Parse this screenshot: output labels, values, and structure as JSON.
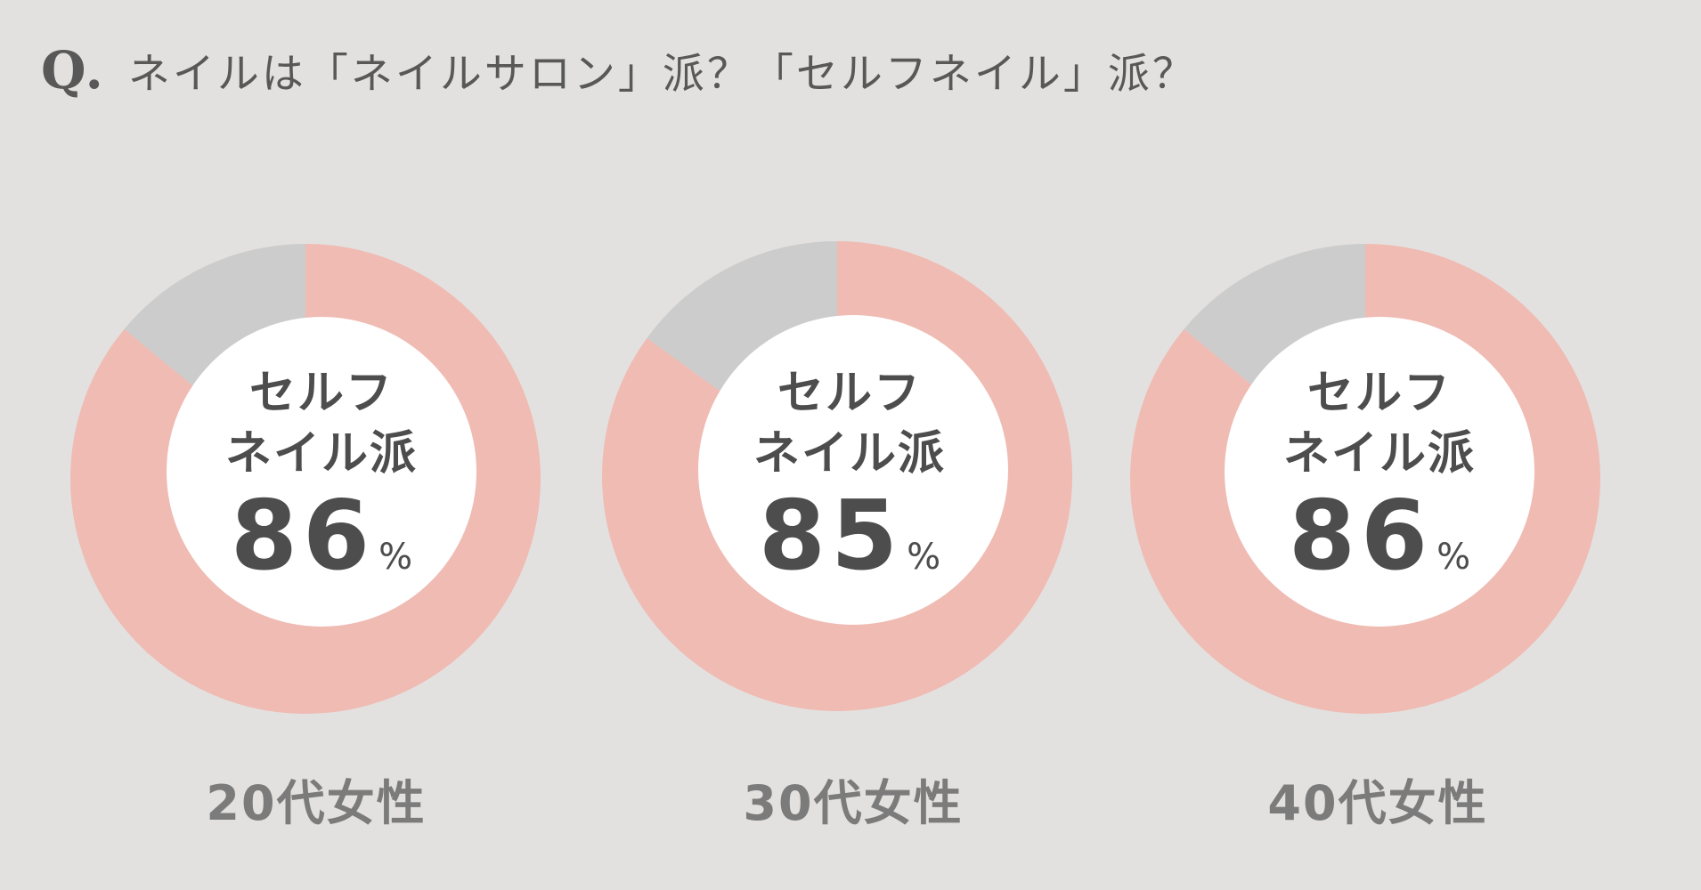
{
  "title": {
    "q_mark": "Q.",
    "question": "ネイルは「ネイルサロン」派？「セルフネイル」派？"
  },
  "colors": {
    "self_nail": "#efbbb3",
    "salon": "#cccccc",
    "hole": "#ffffff"
  },
  "chart_data": {
    "type": "pie",
    "title": "ネイルは「ネイルサロン」派？「セルフネイル」派？",
    "categories": [
      "20代女性",
      "30代女性",
      "40代女性"
    ],
    "series": [
      {
        "name": "セルフネイル派",
        "values": [
          86,
          85,
          86
        ]
      }
    ],
    "center_label_lines": [
      "セルフ",
      "ネイル派"
    ],
    "unit": "%"
  },
  "donuts": [
    {
      "category": "20代女性",
      "value": "86",
      "unit": "%",
      "line1": "セルフ",
      "line2": "ネイル派"
    },
    {
      "category": "30代女性",
      "value": "85",
      "unit": "%",
      "line1": "セルフ",
      "line2": "ネイル派"
    },
    {
      "category": "40代女性",
      "value": "86",
      "unit": "%",
      "line1": "セルフ",
      "line2": "ネイル派"
    }
  ]
}
